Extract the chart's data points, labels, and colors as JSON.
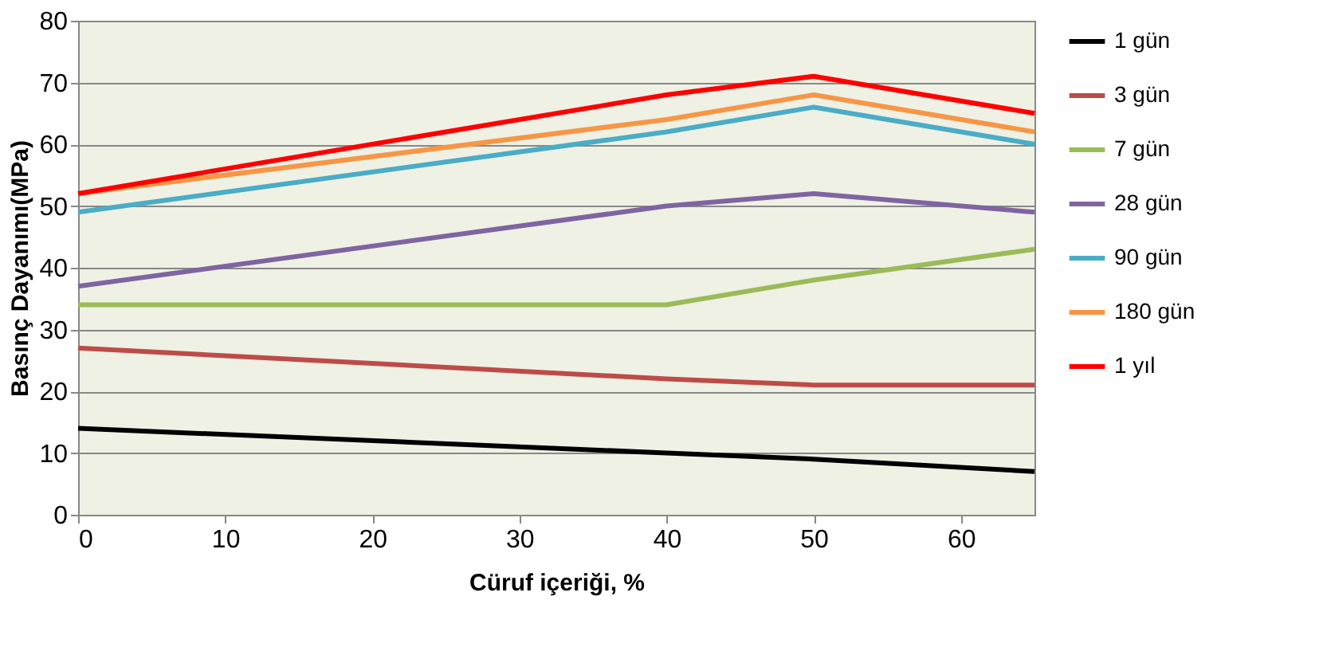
{
  "chart_data": {
    "type": "line",
    "xlabel": "Cüruf içeriği, %",
    "ylabel": "Basınç Dayanımı(MPa)",
    "x": [
      0,
      40,
      50,
      65
    ],
    "series": [
      {
        "name": "1 gün",
        "color": "#000000",
        "values": [
          14,
          10,
          9,
          7
        ]
      },
      {
        "name": "3 gün",
        "color": "#be4b48",
        "values": [
          27,
          22,
          21,
          21
        ]
      },
      {
        "name": "7 gün",
        "color": "#9bbb59",
        "values": [
          34,
          34,
          38,
          43
        ]
      },
      {
        "name": "28 gün",
        "color": "#8064a2",
        "values": [
          37,
          50,
          52,
          49
        ]
      },
      {
        "name": "90 gün",
        "color": "#4bacc6",
        "values": [
          49,
          62,
          66,
          60
        ]
      },
      {
        "name": "180 gün",
        "color": "#f79646",
        "values": [
          52,
          64,
          68,
          62
        ]
      },
      {
        "name": "1 yıl",
        "color": "#ff0000",
        "values": [
          52,
          68,
          71,
          65
        ]
      }
    ],
    "xlim": [
      0,
      65
    ],
    "xticks": [
      0,
      10,
      20,
      30,
      40,
      50,
      60
    ],
    "ylim": [
      0,
      80
    ],
    "yticks": [
      0,
      10,
      20,
      30,
      40,
      50,
      60,
      70,
      80
    ],
    "grid": "y",
    "legend": "right",
    "marker": "none",
    "line_style": "solid"
  }
}
